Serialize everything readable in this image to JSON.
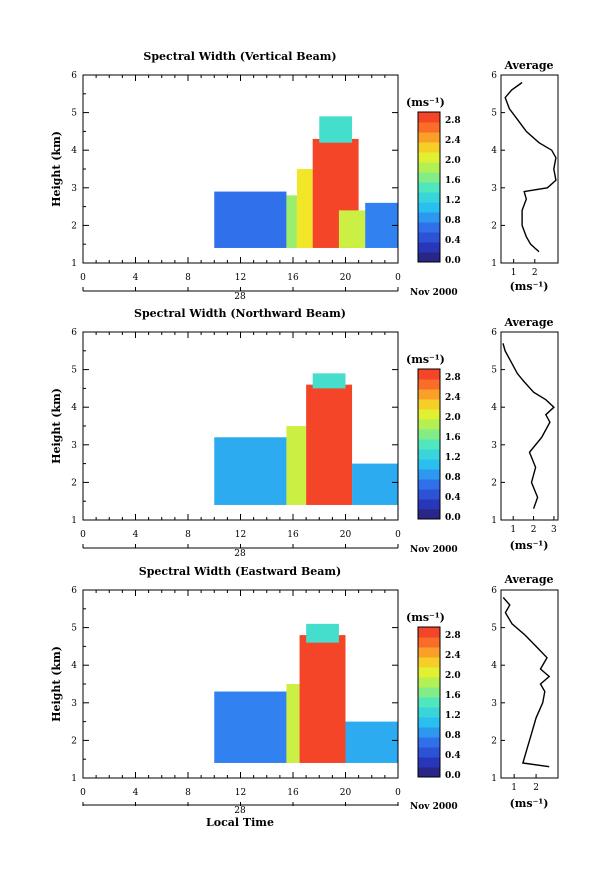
{
  "figure": {
    "x_axis_label": "Local Time",
    "date_label": "Nov 2000",
    "colorbar_unit": "(ms⁻¹)"
  },
  "chart_data": [
    {
      "type": "heatmap",
      "title": "Spectral Width (Vertical Beam)",
      "ylabel": "Height (km)",
      "day_label": "28",
      "date_label": "Nov 2000",
      "x_ticks": [
        "0",
        "4",
        "8",
        "12",
        "16",
        "20",
        "0"
      ],
      "y_ticks": [
        "1",
        "2",
        "3",
        "4",
        "5",
        "6"
      ],
      "xlim": [
        0,
        24
      ],
      "ylim": [
        1,
        6
      ],
      "colorbar": {
        "unit": "(ms⁻¹)",
        "ticks": [
          "2.8",
          "2.4",
          "2.0",
          "1.6",
          "1.2",
          "0.8",
          "0.4",
          "0.0"
        ],
        "range": [
          0,
          3.0
        ]
      },
      "regions": [
        {
          "x": [
            10.0,
            15.5
          ],
          "y": [
            1.4,
            2.9
          ],
          "level": 0.7
        },
        {
          "x": [
            15.5,
            16.3
          ],
          "y": [
            1.4,
            2.8
          ],
          "level": 1.8
        },
        {
          "x": [
            16.3,
            17.5
          ],
          "y": [
            1.4,
            3.5
          ],
          "level": 2.2
        },
        {
          "x": [
            17.5,
            21.0
          ],
          "y": [
            1.4,
            4.3
          ],
          "level": 2.9
        },
        {
          "x": [
            18.0,
            20.5
          ],
          "y": [
            4.2,
            4.9
          ],
          "level": 1.4
        },
        {
          "x": [
            19.5,
            21.5
          ],
          "y": [
            1.4,
            2.4
          ],
          "level": 2.0
        },
        {
          "x": [
            21.5,
            24.0
          ],
          "y": [
            1.4,
            2.6
          ],
          "level": 0.8
        }
      ],
      "profile": {
        "title": "Average",
        "xlabel": "(ms⁻¹)",
        "x_ticks": [
          "1",
          "2"
        ],
        "xlim": [
          0.4,
          3.1
        ],
        "ylim": [
          1,
          6
        ],
        "points": [
          [
            2.2,
            1.3
          ],
          [
            2.0,
            1.4
          ],
          [
            1.8,
            1.5
          ],
          [
            1.6,
            1.7
          ],
          [
            1.4,
            2.0
          ],
          [
            1.4,
            2.4
          ],
          [
            1.6,
            2.7
          ],
          [
            1.5,
            2.9
          ],
          [
            2.6,
            3.0
          ],
          [
            3.0,
            3.2
          ],
          [
            2.9,
            3.5
          ],
          [
            3.0,
            3.8
          ],
          [
            2.8,
            4.0
          ],
          [
            2.2,
            4.2
          ],
          [
            1.6,
            4.5
          ],
          [
            1.2,
            4.8
          ],
          [
            0.8,
            5.1
          ],
          [
            0.6,
            5.4
          ],
          [
            0.9,
            5.6
          ],
          [
            1.4,
            5.8
          ]
        ]
      }
    },
    {
      "type": "heatmap",
      "title": "Spectral Width (Northward Beam)",
      "ylabel": "Height (km)",
      "day_label": "28",
      "date_label": "Nov 2000",
      "x_ticks": [
        "0",
        "4",
        "8",
        "12",
        "16",
        "20",
        "0"
      ],
      "y_ticks": [
        "1",
        "2",
        "3",
        "4",
        "5",
        "6"
      ],
      "xlim": [
        0,
        24
      ],
      "ylim": [
        1,
        6
      ],
      "colorbar": {
        "unit": "(ms⁻¹)",
        "ticks": [
          "2.8",
          "2.4",
          "2.0",
          "1.6",
          "1.2",
          "0.8",
          "0.4",
          "0.0"
        ],
        "range": [
          0,
          3.0
        ]
      },
      "regions": [
        {
          "x": [
            10.0,
            15.5
          ],
          "y": [
            1.4,
            3.2
          ],
          "level": 1.0
        },
        {
          "x": [
            15.5,
            17.0
          ],
          "y": [
            1.4,
            3.5
          ],
          "level": 2.0
        },
        {
          "x": [
            17.0,
            20.5
          ],
          "y": [
            1.4,
            4.6
          ],
          "level": 2.9
        },
        {
          "x": [
            17.5,
            20.0
          ],
          "y": [
            4.5,
            4.9
          ],
          "level": 1.4
        },
        {
          "x": [
            20.5,
            24.0
          ],
          "y": [
            1.4,
            2.5
          ],
          "level": 1.0
        }
      ],
      "profile": {
        "title": "Average",
        "xlabel": "(ms⁻¹)",
        "x_ticks": [
          "1",
          "2",
          "3"
        ],
        "xlim": [
          0.4,
          3.2
        ],
        "ylim": [
          1,
          6
        ],
        "points": [
          [
            2.0,
            1.3
          ],
          [
            2.2,
            1.6
          ],
          [
            1.9,
            2.0
          ],
          [
            2.1,
            2.4
          ],
          [
            1.8,
            2.8
          ],
          [
            2.4,
            3.2
          ],
          [
            2.8,
            3.6
          ],
          [
            2.6,
            3.8
          ],
          [
            3.0,
            4.0
          ],
          [
            2.6,
            4.2
          ],
          [
            2.0,
            4.4
          ],
          [
            1.5,
            4.7
          ],
          [
            1.2,
            4.9
          ],
          [
            0.9,
            5.2
          ],
          [
            0.6,
            5.5
          ],
          [
            0.5,
            5.7
          ]
        ]
      }
    },
    {
      "type": "heatmap",
      "title": "Spectral Width (Eastward Beam)",
      "ylabel": "Height (km)",
      "day_label": "28",
      "date_label": "Nov 2000",
      "x_ticks": [
        "0",
        "4",
        "8",
        "12",
        "16",
        "20",
        "0"
      ],
      "y_ticks": [
        "1",
        "2",
        "3",
        "4",
        "5",
        "6"
      ],
      "xlim": [
        0,
        24
      ],
      "ylim": [
        1,
        6
      ],
      "colorbar": {
        "unit": "(ms⁻¹)",
        "ticks": [
          "2.8",
          "2.4",
          "2.0",
          "1.6",
          "1.2",
          "0.8",
          "0.4",
          "0.0"
        ],
        "range": [
          0,
          3.0
        ]
      },
      "regions": [
        {
          "x": [
            10.0,
            15.5
          ],
          "y": [
            1.4,
            3.3
          ],
          "level": 0.8
        },
        {
          "x": [
            15.5,
            16.5
          ],
          "y": [
            1.4,
            3.5
          ],
          "level": 2.0
        },
        {
          "x": [
            16.5,
            20.0
          ],
          "y": [
            1.4,
            4.8
          ],
          "level": 2.9
        },
        {
          "x": [
            17.0,
            19.5
          ],
          "y": [
            4.6,
            5.1
          ],
          "level": 1.4
        },
        {
          "x": [
            20.0,
            24.0
          ],
          "y": [
            1.4,
            2.5
          ],
          "level": 1.0
        }
      ],
      "profile": {
        "title": "Average",
        "xlabel": "(ms⁻¹)",
        "x_ticks": [
          "1",
          "2"
        ],
        "xlim": [
          0.4,
          3.0
        ],
        "ylim": [
          1,
          6
        ],
        "points": [
          [
            2.6,
            1.3
          ],
          [
            1.4,
            1.4
          ],
          [
            1.6,
            1.8
          ],
          [
            1.8,
            2.2
          ],
          [
            2.0,
            2.6
          ],
          [
            2.3,
            3.0
          ],
          [
            2.4,
            3.3
          ],
          [
            2.2,
            3.5
          ],
          [
            2.6,
            3.7
          ],
          [
            2.2,
            3.9
          ],
          [
            2.5,
            4.2
          ],
          [
            2.0,
            4.5
          ],
          [
            1.5,
            4.8
          ],
          [
            0.9,
            5.1
          ],
          [
            0.6,
            5.4
          ],
          [
            0.8,
            5.6
          ],
          [
            0.5,
            5.8
          ]
        ]
      }
    }
  ]
}
